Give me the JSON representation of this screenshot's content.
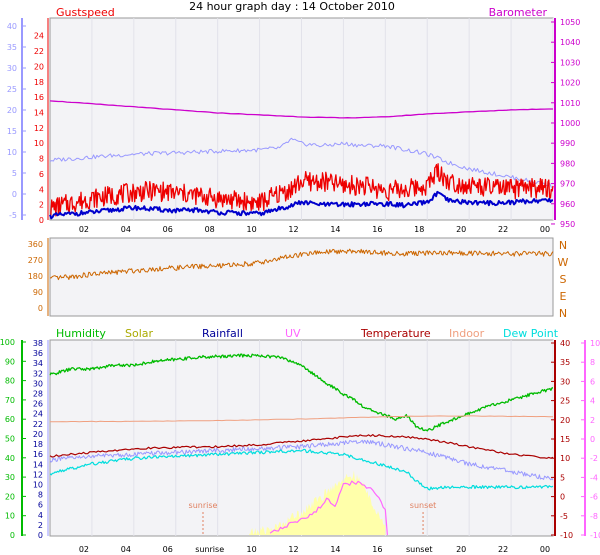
{
  "title": "24 hour graph day : 14 October 2010",
  "colors": {
    "gust": "#ee0000",
    "wind": "#0000cc",
    "temperature_axis_blue": "#9999ff",
    "barometer": "#cc00cc",
    "direction": "#cc6600",
    "humidity": "#00bb00",
    "solar": "#aaaa00",
    "rainfall": "#000099",
    "uv": "#ff66ff",
    "temperature": "#aa0000",
    "indoor": "#f0a080",
    "dewpoint": "#00dddd",
    "sun_fill": "#ffffaa"
  },
  "chart_data": [
    {
      "type": "line",
      "panel": "wind",
      "labels": {
        "left": "Gustspeed",
        "right": "Barometer"
      },
      "x_ticks": [
        "02",
        "04",
        "06",
        "08",
        "10",
        "12",
        "14",
        "16",
        "18",
        "20",
        "22",
        "00"
      ],
      "x_range": [
        0,
        24
      ],
      "outer_left_axis": {
        "ticks": [
          -5,
          0,
          5,
          10,
          15,
          20,
          25,
          30,
          35,
          40
        ],
        "range": [
          -5,
          40
        ]
      },
      "left_axis": {
        "ticks": [
          0,
          2,
          4,
          6,
          8,
          10,
          12,
          14,
          16,
          18,
          20,
          22,
          24
        ],
        "range": [
          0,
          25
        ]
      },
      "right_axis": {
        "ticks": [
          950,
          960,
          970,
          980,
          990,
          1000,
          1010,
          1020,
          1030,
          1040,
          1050
        ],
        "range": [
          948,
          1050
        ]
      },
      "series": [
        {
          "key": "temp",
          "axis": "outer_left",
          "x": [
            0,
            2,
            4,
            6,
            8,
            10,
            11,
            11.5,
            12,
            13,
            14,
            15,
            16,
            17,
            18,
            19,
            20,
            21,
            22,
            23,
            24
          ],
          "y": [
            8,
            8.8,
            9.5,
            9.8,
            10.2,
            10.5,
            11,
            13,
            12,
            11.5,
            12,
            11.5,
            11.5,
            10.5,
            9.5,
            7.5,
            6,
            5,
            4,
            3,
            2
          ]
        },
        {
          "key": "gust",
          "axis": "left",
          "x": [
            0,
            1,
            2,
            3,
            4,
            5,
            6,
            7,
            8,
            9,
            10,
            11,
            11.5,
            12,
            13,
            14,
            15,
            16,
            17,
            18,
            18.5,
            19,
            20,
            21,
            22,
            23,
            24
          ],
          "y": [
            1.5,
            2.2,
            2.8,
            3.2,
            3.6,
            3.8,
            3.5,
            3.2,
            2.8,
            2.5,
            2.2,
            3.5,
            4,
            5,
            5,
            4.5,
            4.5,
            3.8,
            4,
            4.5,
            6.5,
            5,
            4.5,
            4.2,
            4,
            4.2,
            4
          ]
        },
        {
          "key": "wind",
          "axis": "left",
          "x": [
            0,
            1,
            2,
            3,
            4,
            5,
            6,
            7,
            8,
            9,
            10,
            11,
            12,
            13,
            14,
            15,
            16,
            17,
            18,
            18.5,
            19,
            20,
            21,
            22,
            23,
            24
          ],
          "y": [
            0.5,
            0.8,
            1,
            1.3,
            1.6,
            1.4,
            1.2,
            1.3,
            1,
            0.9,
            0.8,
            1.5,
            2.3,
            2,
            2,
            2.1,
            2.1,
            1.9,
            2.3,
            3.5,
            2.5,
            2.3,
            2.2,
            2.3,
            2.5,
            2.6
          ]
        },
        {
          "key": "barometer",
          "axis": "right",
          "x": [
            0,
            2,
            4,
            6,
            8,
            10,
            12,
            14,
            16,
            18,
            20,
            22,
            24
          ],
          "y": [
            1011,
            1009.5,
            1008,
            1006.5,
            1005,
            1004,
            1003,
            1002.5,
            1003,
            1004.5,
            1005.5,
            1006.5,
            1007
          ]
        }
      ]
    },
    {
      "type": "line",
      "panel": "direction",
      "x_range": [
        0,
        24
      ],
      "left_axis": {
        "ticks": [
          0,
          90,
          180,
          270,
          360
        ],
        "range": [
          0,
          360
        ]
      },
      "right_labels": [
        "N",
        "W",
        "S",
        "E",
        "N"
      ],
      "series": [
        {
          "key": "direction",
          "x": [
            0,
            1,
            2,
            3,
            4,
            5,
            6,
            7,
            8,
            9,
            10,
            11,
            12,
            13,
            14,
            15,
            16,
            17,
            18,
            19,
            20,
            21,
            22,
            23,
            24
          ],
          "y": [
            165,
            175,
            190,
            200,
            210,
            220,
            225,
            235,
            235,
            245,
            255,
            280,
            300,
            315,
            320,
            318,
            310,
            305,
            310,
            312,
            308,
            306,
            305,
            305,
            305
          ]
        }
      ]
    },
    {
      "type": "line",
      "panel": "climate",
      "legend": [
        "Humidity",
        "Solar",
        "Rainfall",
        "UV",
        "Temperature",
        "Indoor",
        "Dew Point"
      ],
      "x_ticks": [
        "02",
        "04",
        "06",
        "sunrise",
        "10",
        "12",
        "14",
        "16",
        "sunset",
        "20",
        "22",
        "00"
      ],
      "annotations": [
        "sunrise",
        "sunset"
      ],
      "x_range": [
        0,
        24
      ],
      "humidity_axis": {
        "ticks": [
          0,
          10,
          20,
          30,
          40,
          50,
          60,
          70,
          80,
          90,
          100
        ],
        "range": [
          0,
          100
        ]
      },
      "rain_axis": {
        "ticks": [
          0,
          2,
          4,
          6,
          8,
          10,
          12,
          14,
          16,
          18,
          20,
          22,
          24,
          26,
          28,
          30,
          32,
          34,
          36,
          38
        ],
        "range": [
          0,
          38
        ]
      },
      "temp_axis": {
        "ticks": [
          -10,
          -5,
          0,
          5,
          10,
          15,
          20,
          25,
          30,
          35,
          40
        ],
        "range": [
          -10,
          40
        ]
      },
      "uv_axis": {
        "ticks": [
          -10,
          -8,
          -6,
          -4,
          -2,
          0,
          2,
          4,
          6,
          8,
          10
        ],
        "range": [
          -10,
          10
        ]
      },
      "series": [
        {
          "key": "humidity",
          "axis": "humidity",
          "x": [
            0,
            1,
            2,
            3,
            4,
            5,
            6,
            7,
            8,
            9,
            10,
            11,
            12,
            13,
            14,
            14.5,
            15,
            15.5,
            16,
            16.5,
            17,
            17.5,
            18,
            19,
            20,
            21,
            22,
            23,
            24
          ],
          "y": [
            83,
            86,
            86,
            88,
            88,
            90,
            91,
            92,
            92.5,
            93,
            93,
            92,
            88,
            80,
            73,
            70,
            66,
            64,
            62,
            60,
            62,
            56,
            54,
            59,
            63,
            67,
            70,
            73,
            76
          ]
        },
        {
          "key": "temperature",
          "axis": "temp",
          "x": [
            0,
            2,
            4,
            6,
            8,
            10,
            12,
            14,
            15,
            16,
            17,
            18,
            19,
            20,
            21,
            22,
            23,
            24
          ],
          "y": [
            10.5,
            11.5,
            12.5,
            12.8,
            13,
            13.5,
            14.5,
            15.5,
            16,
            15.8,
            15.5,
            15,
            14,
            13,
            12,
            11,
            10.5,
            10
          ]
        },
        {
          "key": "indoor",
          "axis": "temp",
          "x": [
            0,
            4,
            8,
            12,
            16,
            18,
            20,
            24
          ],
          "y": [
            19.5,
            19.6,
            19.8,
            20.2,
            20.8,
            21,
            21,
            20.8
          ]
        },
        {
          "key": "temp_blue",
          "axis": "temp",
          "x": [
            0,
            2,
            4,
            6,
            8,
            10,
            12,
            14,
            15,
            16,
            17,
            18,
            19,
            20,
            21,
            22,
            23,
            24
          ],
          "y": [
            9.5,
            10.5,
            11,
            11.5,
            12,
            12.5,
            13,
            14,
            14.5,
            13.5,
            12.5,
            11.5,
            10,
            8.5,
            7.5,
            6.5,
            5.5,
            4.5
          ]
        },
        {
          "key": "dewpoint",
          "axis": "temp",
          "x": [
            0,
            2,
            4,
            6,
            8,
            10,
            12,
            13,
            14,
            15,
            16,
            17,
            17.5,
            18,
            19,
            20,
            21,
            22,
            23,
            24
          ],
          "y": [
            6,
            8.5,
            10,
            10.5,
            11,
            11.5,
            12,
            11.5,
            11,
            9.5,
            8,
            6.5,
            4,
            2,
            2.5,
            2.5,
            2.5,
            2.5,
            2.5,
            2.5
          ]
        },
        {
          "key": "uv",
          "axis": "uv",
          "x": [
            10.5,
            11,
            11.5,
            12,
            12.5,
            13,
            13.3,
            13.6,
            14,
            14.5,
            15,
            15.5,
            16,
            16.1
          ],
          "y": [
            -10,
            -9.2,
            -8.8,
            -8.3,
            -7.8,
            -6.8,
            -6.2,
            -7,
            -4.8,
            -4.5,
            -4.8,
            -5.5,
            -7.5,
            -10
          ]
        },
        {
          "key": "solar",
          "axis": "humidity",
          "x": [
            9.5,
            10,
            10.5,
            11,
            11.5,
            12,
            12.5,
            13,
            13.5,
            14,
            14.5,
            15,
            15.5,
            16
          ],
          "y": [
            1,
            2,
            3,
            5,
            9,
            12,
            16,
            20,
            25,
            29,
            31,
            25,
            14,
            3
          ]
        }
      ]
    }
  ]
}
